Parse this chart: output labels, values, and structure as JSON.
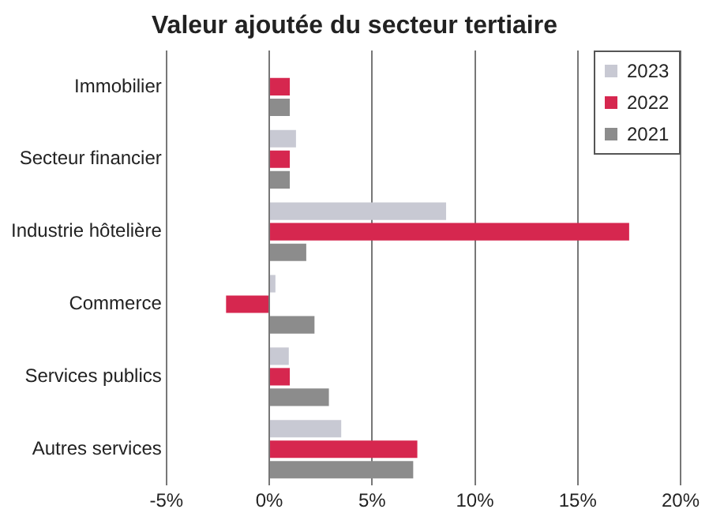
{
  "chart_data": {
    "type": "bar",
    "orientation": "horizontal",
    "title": "Valeur ajoutée du secteur tertiaire",
    "categories": [
      "Immobilier",
      "Secteur financier",
      "Industrie hôtelière",
      "Commerce",
      "Services publics",
      "Autres services"
    ],
    "series": [
      {
        "name": "2023",
        "color": "#c8c9d3",
        "values": [
          null,
          1.3,
          8.6,
          0.3,
          0.95,
          3.5
        ]
      },
      {
        "name": "2022",
        "color": "#d6274f",
        "values": [
          1.0,
          1.0,
          17.5,
          -2.1,
          1.0,
          7.2
        ]
      },
      {
        "name": "2021",
        "color": "#8c8c8c",
        "values": [
          1.0,
          1.0,
          1.8,
          2.2,
          2.9,
          7.0
        ]
      }
    ],
    "xlim": [
      -5,
      20
    ],
    "xticks": [
      {
        "value": -5,
        "label": "-5%"
      },
      {
        "value": 0,
        "label": "0%"
      },
      {
        "value": 5,
        "label": "5%"
      },
      {
        "value": 10,
        "label": "10%"
      },
      {
        "value": 15,
        "label": "15%"
      },
      {
        "value": 20,
        "label": "20%"
      }
    ],
    "grid": "x",
    "legend": "top right"
  }
}
